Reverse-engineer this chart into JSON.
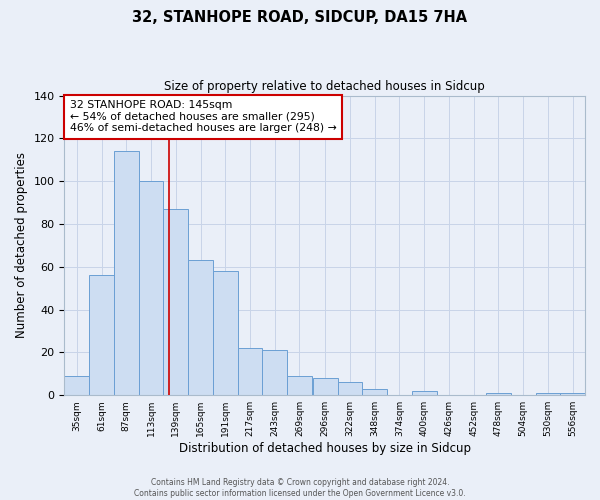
{
  "title": "32, STANHOPE ROAD, SIDCUP, DA15 7HA",
  "subtitle": "Size of property relative to detached houses in Sidcup",
  "xlabel": "Distribution of detached houses by size in Sidcup",
  "ylabel": "Number of detached properties",
  "bins": [
    35,
    61,
    87,
    113,
    139,
    165,
    191,
    217,
    243,
    269,
    296,
    322,
    348,
    374,
    400,
    426,
    452,
    478,
    504,
    530,
    556,
    582
  ],
  "counts": [
    9,
    56,
    114,
    100,
    87,
    63,
    58,
    22,
    21,
    9,
    8,
    6,
    3,
    0,
    2,
    0,
    0,
    1,
    0,
    1,
    1
  ],
  "bar_facecolor": "#cdddf2",
  "bar_edgecolor": "#6b9fd4",
  "vline_x": 145,
  "vline_color": "#cc0000",
  "annotation_line1": "32 STANHOPE ROAD: 145sqm",
  "annotation_line2": "← 54% of detached houses are smaller (295)",
  "annotation_line3": "46% of semi-detached houses are larger (248) →",
  "annotation_box_edgecolor": "#cc0000",
  "annotation_box_facecolor": "#ffffff",
  "ylim": [
    0,
    140
  ],
  "tick_labels": [
    "35sqm",
    "61sqm",
    "87sqm",
    "113sqm",
    "139sqm",
    "165sqm",
    "191sqm",
    "217sqm",
    "243sqm",
    "269sqm",
    "296sqm",
    "322sqm",
    "348sqm",
    "374sqm",
    "400sqm",
    "426sqm",
    "452sqm",
    "478sqm",
    "504sqm",
    "530sqm",
    "556sqm"
  ],
  "grid_color": "#c8d4e8",
  "background_color": "#eaeff8",
  "footer_line1": "Contains HM Land Registry data © Crown copyright and database right 2024.",
  "footer_line2": "Contains public sector information licensed under the Open Government Licence v3.0."
}
